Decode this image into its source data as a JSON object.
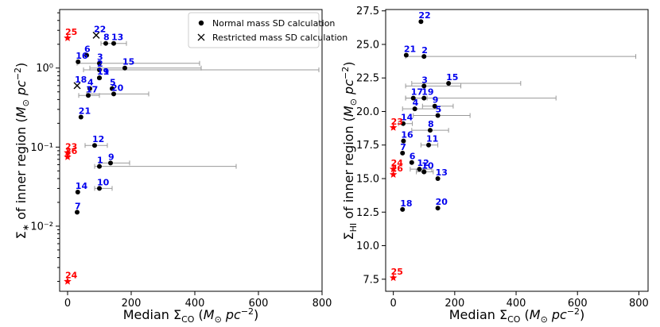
{
  "colors": {
    "normal": "#000000",
    "red": "#ff0000",
    "label_blue": "#0000ee",
    "errbar": "#999999"
  },
  "legend": {
    "normal": "Normal mass SD calculation",
    "restricted": "Restricted mass SD calculation"
  },
  "chart_data": [
    {
      "type": "scatter",
      "yscale": "log",
      "xlabel": "Median Σ_CO (M⊙ pc⁻²)",
      "ylabel": "Σ* of inner region (M⊙ pc⁻²)",
      "xlim": [
        -25,
        800
      ],
      "ylim": [
        0.0015,
        5.5
      ],
      "xticks": [
        "0",
        "200",
        "400",
        "600",
        "800"
      ],
      "xtick_values": [
        0,
        200,
        400,
        600,
        800
      ],
      "yticks": [
        "10⁻²",
        "10⁻¹",
        "10⁰"
      ],
      "ytick_values": [
        0.01,
        0.1,
        1
      ],
      "legend_position": "top-right",
      "points": [
        {
          "id": "1",
          "x": 100,
          "y": 0.057,
          "xerr": [
            15,
            430
          ],
          "kind": "normal"
        },
        {
          "id": "2",
          "x": 100,
          "y": 0.95,
          "xerr": [
            50,
            690
          ],
          "kind": "normal"
        },
        {
          "id": "3",
          "x": 100,
          "y": 1.15,
          "xerr": [
            70,
            315
          ],
          "kind": "normal"
        },
        {
          "id": "4",
          "x": 70,
          "y": 0.55,
          "kind": "normal"
        },
        {
          "id": "5",
          "x": 140,
          "y": 0.55,
          "kind": "normal"
        },
        {
          "id": "6",
          "x": 60,
          "y": 1.45,
          "kind": "normal"
        },
        {
          "id": "7",
          "x": 30,
          "y": 0.015,
          "kind": "normal"
        },
        {
          "id": "8",
          "x": 120,
          "y": 2.05,
          "kind": "normal"
        },
        {
          "id": "9",
          "x": 135,
          "y": 0.063,
          "xerr": [
            35,
            60
          ],
          "kind": "normal"
        },
        {
          "id": "10",
          "x": 100,
          "y": 0.03,
          "xerr": [
            15,
            40
          ],
          "kind": "normal"
        },
        {
          "id": "11",
          "x": 100,
          "y": 0.75,
          "kind": "normal"
        },
        {
          "id": "12",
          "x": 85,
          "y": 0.105,
          "xerr": [
            30,
            40
          ],
          "kind": "normal"
        },
        {
          "id": "13",
          "x": 145,
          "y": 2.05,
          "xerr": [
            40,
            40
          ],
          "kind": "normal"
        },
        {
          "id": "14",
          "x": 32,
          "y": 0.027,
          "kind": "normal"
        },
        {
          "id": "15",
          "x": 180,
          "y": 1.0,
          "xerr": [
            110,
            240
          ],
          "kind": "normal"
        },
        {
          "id": "16",
          "x": 33,
          "y": 1.2,
          "kind": "normal"
        },
        {
          "id": "17",
          "x": 65,
          "y": 0.45,
          "xerr": [
            30,
            35
          ],
          "kind": "normal"
        },
        {
          "id": "18",
          "x": 30,
          "y": 0.6,
          "kind": "restricted"
        },
        {
          "id": "19",
          "x": 100,
          "y": 0.75,
          "kind": "normal"
        },
        {
          "id": "20",
          "x": 145,
          "y": 0.47,
          "xerr": [
            85,
            110
          ],
          "kind": "normal"
        },
        {
          "id": "21",
          "x": 42,
          "y": 0.24,
          "kind": "normal"
        },
        {
          "id": "22",
          "x": 90,
          "y": 2.6,
          "kind": "restricted"
        },
        {
          "id": "23",
          "x": 0,
          "y": 0.085,
          "kind": "red"
        },
        {
          "id": "24",
          "x": 0,
          "y": 0.002,
          "kind": "red"
        },
        {
          "id": "25",
          "x": 0,
          "y": 2.4,
          "kind": "red"
        },
        {
          "id": "26",
          "x": 0,
          "y": 0.075,
          "kind": "red"
        }
      ]
    },
    {
      "type": "scatter",
      "yscale": "linear",
      "xlabel": "Median Σ_CO (M⊙ pc⁻²)",
      "ylabel": "Σ_HI of inner region (M⊙ pc⁻²)",
      "xlim": [
        -25,
        830
      ],
      "ylim": [
        6.6,
        27.6
      ],
      "xticks": [
        "0",
        "200",
        "400",
        "600",
        "800"
      ],
      "xtick_values": [
        0,
        200,
        400,
        600,
        800
      ],
      "yticks": [
        "7.5",
        "10.0",
        "12.5",
        "15.0",
        "17.5",
        "20.0",
        "22.5",
        "25.0",
        "27.5"
      ],
      "ytick_values": [
        7.5,
        10.0,
        12.5,
        15.0,
        17.5,
        20.0,
        22.5,
        25.0,
        27.5
      ],
      "points": [
        {
          "id": "1",
          "x": 100,
          "y": 15.5,
          "kind": "normal"
        },
        {
          "id": "2",
          "x": 100,
          "y": 24.1,
          "xerr": [
            60,
            690
          ],
          "kind": "normal"
        },
        {
          "id": "3",
          "x": 100,
          "y": 21.9,
          "xerr": [
            60,
            120
          ],
          "kind": "normal"
        },
        {
          "id": "4",
          "x": 70,
          "y": 20.2,
          "xerr": [
            40,
            80
          ],
          "kind": "normal"
        },
        {
          "id": "5",
          "x": 145,
          "y": 19.7,
          "xerr": [
            80,
            105
          ],
          "kind": "normal"
        },
        {
          "id": "6",
          "x": 60,
          "y": 16.2,
          "kind": "normal"
        },
        {
          "id": "7",
          "x": 30,
          "y": 16.9,
          "kind": "normal"
        },
        {
          "id": "8",
          "x": 120,
          "y": 18.6,
          "xerr": [
            60,
            60
          ],
          "kind": "normal"
        },
        {
          "id": "9",
          "x": 135,
          "y": 20.4,
          "xerr": [
            40,
            60
          ],
          "kind": "normal"
        },
        {
          "id": "10",
          "x": 100,
          "y": 15.5,
          "xerr": [
            25,
            30
          ],
          "kind": "normal"
        },
        {
          "id": "11",
          "x": 115,
          "y": 17.5,
          "xerr": [
            25,
            30
          ],
          "kind": "normal"
        },
        {
          "id": "12",
          "x": 85,
          "y": 15.7,
          "xerr": [
            30,
            40
          ],
          "kind": "normal"
        },
        {
          "id": "13",
          "x": 145,
          "y": 15.0,
          "kind": "normal"
        },
        {
          "id": "14",
          "x": 32,
          "y": 19.1,
          "xerr": [
            15,
            30
          ],
          "kind": "normal"
        },
        {
          "id": "15",
          "x": 180,
          "y": 22.1,
          "xerr": [
            120,
            235
          ],
          "kind": "normal"
        },
        {
          "id": "16",
          "x": 33,
          "y": 17.8,
          "kind": "normal"
        },
        {
          "id": "17",
          "x": 65,
          "y": 21.0,
          "xerr": [
            25,
            45
          ],
          "kind": "normal"
        },
        {
          "id": "18",
          "x": 30,
          "y": 12.7,
          "kind": "normal"
        },
        {
          "id": "19",
          "x": 100,
          "y": 21.0,
          "xerr": [
            60,
            430
          ],
          "kind": "normal"
        },
        {
          "id": "20",
          "x": 145,
          "y": 12.8,
          "kind": "normal"
        },
        {
          "id": "21",
          "x": 42,
          "y": 24.2,
          "kind": "normal"
        },
        {
          "id": "22",
          "x": 90,
          "y": 26.7,
          "kind": "normal"
        },
        {
          "id": "23",
          "x": 0,
          "y": 18.8,
          "kind": "red"
        },
        {
          "id": "24",
          "x": 0,
          "y": 15.7,
          "kind": "red"
        },
        {
          "id": "25",
          "x": 0,
          "y": 7.6,
          "kind": "red"
        },
        {
          "id": "26",
          "x": 0,
          "y": 15.3,
          "kind": "red"
        }
      ]
    }
  ]
}
